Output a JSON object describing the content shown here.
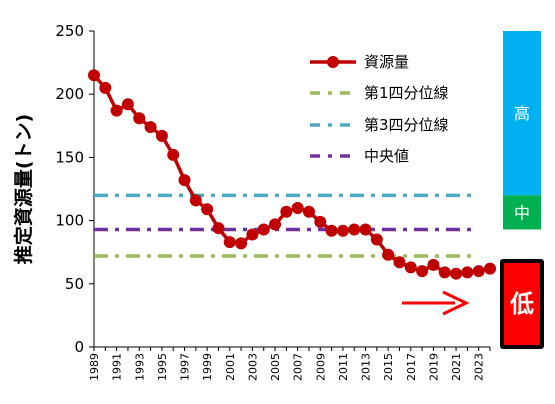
{
  "chart_data": {
    "type": "line",
    "ylabel": "推定資源量(トン)",
    "ylim": [
      0,
      250
    ],
    "yticks": [
      0,
      50,
      100,
      150,
      200,
      250
    ],
    "xticks": [
      "1989",
      "1991",
      "1993",
      "1995",
      "1997",
      "1999",
      "2001",
      "2003",
      "2005",
      "2007",
      "2009",
      "2011",
      "2013",
      "2015",
      "2017",
      "2019",
      "2021",
      "2023"
    ],
    "grid": false,
    "legend_position": "top-right",
    "series": [
      {
        "name": "資源量",
        "color": "#c00000",
        "x": [
          1989,
          1990,
          1991,
          1992,
          1993,
          1994,
          1995,
          1996,
          1997,
          1998,
          1999,
          2000,
          2001,
          2002,
          2003,
          2004,
          2005,
          2006,
          2007,
          2008,
          2009,
          2010,
          2011,
          2012,
          2013,
          2014,
          2015,
          2016,
          2017,
          2018,
          2019,
          2020,
          2021,
          2022,
          2023,
          2024
        ],
        "values": [
          215,
          205,
          187,
          192,
          181,
          174,
          167,
          152,
          132,
          116,
          109,
          94,
          83,
          82,
          89,
          93,
          97,
          107,
          110,
          107,
          99,
          92,
          92,
          93,
          93,
          85,
          73,
          67,
          63,
          60,
          65,
          59,
          58,
          59,
          60,
          62
        ]
      },
      {
        "name": "第1四分位線",
        "color": "#9bbb59",
        "value": 72
      },
      {
        "name": "第3四分位線",
        "color": "#4bacc6",
        "value": 120
      },
      {
        "name": "中央値",
        "color": "#7030a0",
        "value": 93
      }
    ],
    "levels": [
      {
        "label": "高",
        "color": "#00b0f0",
        "range": [
          120,
          250
        ]
      },
      {
        "label": "中",
        "color": "#00b050",
        "range": [
          93,
          120
        ]
      },
      {
        "label": "低",
        "color": "#ff0000",
        "range": [
          0,
          72
        ]
      }
    ],
    "trend_arrow_color": "#ff0000"
  }
}
